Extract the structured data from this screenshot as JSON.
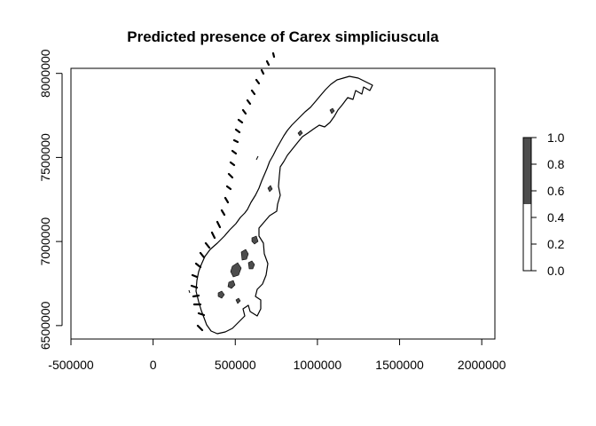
{
  "title": "Predicted presence of Carex simpliciuscula",
  "x_axis": {
    "ticks": [
      -500000,
      0,
      500000,
      1000000,
      1500000,
      2000000
    ],
    "labels": [
      "-500000",
      "0",
      "500000",
      "1000000",
      "1500000",
      "2000000"
    ],
    "range": [
      -500000,
      2080000
    ]
  },
  "y_axis": {
    "ticks": [
      6500000,
      7000000,
      7500000,
      8000000
    ],
    "labels": [
      "6500000",
      "7000000",
      "7500000",
      "8000000"
    ],
    "range": [
      6420000,
      8030000
    ]
  },
  "legend": {
    "ticks": [
      0.0,
      0.2,
      0.4,
      0.6,
      0.8,
      1.0
    ],
    "labels": [
      "0.0",
      "0.2",
      "0.4",
      "0.6",
      "0.8",
      "1.0"
    ],
    "bins": [
      {
        "from": 0.0,
        "to": 0.5,
        "color": "#ffffff"
      },
      {
        "from": 0.5,
        "to": 1.0,
        "color": "#4d4d4d"
      }
    ],
    "placement": "right"
  },
  "colors": {
    "presence": "#4d4d4d",
    "absence": "#ffffff",
    "outline": "#000000"
  }
}
